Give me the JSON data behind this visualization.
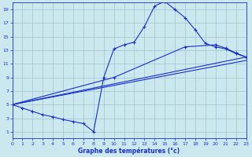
{
  "xlabel": "Graphe des températures (°c)",
  "xlim": [
    0,
    23
  ],
  "ylim": [
    0,
    20
  ],
  "xticks": [
    0,
    1,
    2,
    3,
    4,
    5,
    6,
    7,
    8,
    9,
    10,
    11,
    12,
    13,
    14,
    15,
    16,
    17,
    18,
    19,
    20,
    21,
    22,
    23
  ],
  "yticks": [
    1,
    3,
    5,
    7,
    9,
    11,
    13,
    15,
    17,
    19
  ],
  "bg_color": "#cce8ef",
  "grid_color": "#a0c4d0",
  "line_color": "#1a2ecc",
  "curve_x": [
    0,
    1,
    2,
    3,
    4,
    5,
    6,
    7,
    8,
    9,
    10,
    11,
    12,
    13,
    14,
    15,
    16,
    17,
    18,
    19,
    20,
    21,
    22,
    23
  ],
  "curve_y": [
    5.0,
    4.5,
    4.0,
    3.5,
    3.2,
    2.8,
    2.5,
    2.2,
    1.0,
    9.0,
    13.2,
    13.8,
    14.2,
    16.5,
    19.5,
    20.2,
    19.0,
    17.8,
    16.0,
    14.0,
    13.5,
    13.2,
    12.5,
    12.0
  ],
  "line1_x": [
    0,
    23
  ],
  "line1_y": [
    5.0,
    11.5
  ],
  "line2_x": [
    0,
    23
  ],
  "line2_y": [
    5.0,
    12.0
  ],
  "line3_x": [
    0,
    10,
    17,
    20,
    21,
    22,
    23
  ],
  "line3_y": [
    5.0,
    9.0,
    13.5,
    13.8,
    13.3,
    12.6,
    12.0
  ]
}
